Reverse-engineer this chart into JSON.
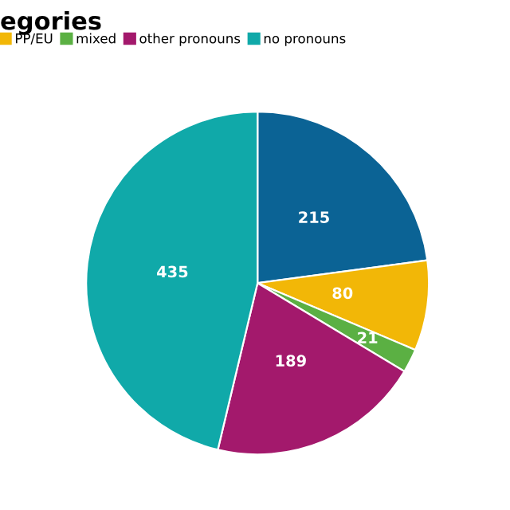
{
  "chart_data": {
    "type": "pie",
    "title": "egories",
    "categories": [
      null,
      "PP/EU",
      "mixed",
      "other pronouns",
      "no pronouns"
    ],
    "values": [
      215,
      80,
      21,
      189,
      435
    ],
    "colors": [
      "#0b6395",
      "#f2b707",
      "#5bb043",
      "#a3196c",
      "#10a9a9"
    ],
    "data_labels": true,
    "legend": "top left"
  }
}
